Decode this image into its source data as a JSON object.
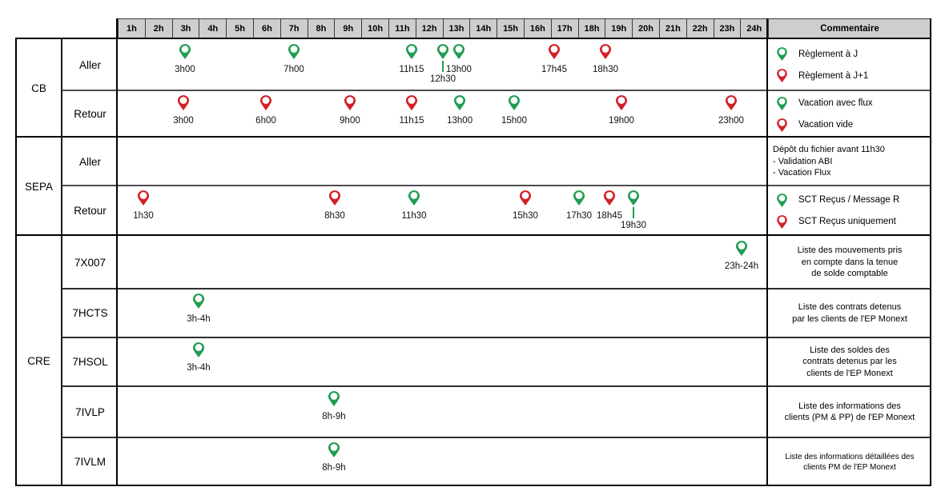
{
  "colors": {
    "green": "#1f9d50",
    "red": "#d22027",
    "header_bg": "#cecece",
    "border": "#000000",
    "inner_line": "#4d4d4d"
  },
  "header": {
    "hours": [
      "1h",
      "2h",
      "3h",
      "4h",
      "5h",
      "6h",
      "7h",
      "8h",
      "9h",
      "10h",
      "11h",
      "12h",
      "13h",
      "14h",
      "15h",
      "16h",
      "17h",
      "18h",
      "19h",
      "20h",
      "21h",
      "22h",
      "23h",
      "24h"
    ],
    "comment": "Commentaire"
  },
  "groups": [
    {
      "label": "CB",
      "rows": [
        {
          "label": "Aller",
          "pins": [
            {
              "time": "3h00",
              "color": "green",
              "x": 10.34
            },
            {
              "time": "7h00",
              "color": "green",
              "x": 27.09
            },
            {
              "time": "11h15",
              "color": "green",
              "x": 45.2
            },
            {
              "time": "12h30",
              "color": "green",
              "x": 50.0,
              "below": true
            },
            {
              "time": "13h00",
              "color": "green",
              "x": 52.46
            },
            {
              "time": "17h45",
              "color": "red",
              "x": 67.12
            },
            {
              "time": "18h30",
              "color": "red",
              "x": 75.0
            }
          ],
          "comment": {
            "type": "legend",
            "items": [
              {
                "color": "green",
                "text": "Règlement à J"
              },
              {
                "color": "red",
                "text": "Règlement à J+1"
              }
            ]
          }
        },
        {
          "label": "Retour",
          "pins": [
            {
              "time": "3h00",
              "color": "red",
              "x": 10.1
            },
            {
              "time": "6h00",
              "color": "red",
              "x": 22.78
            },
            {
              "time": "9h00",
              "color": "red",
              "x": 35.71
            },
            {
              "time": "11h15",
              "color": "red",
              "x": 45.2
            },
            {
              "time": "13h00",
              "color": "green",
              "x": 52.6
            },
            {
              "time": "15h00",
              "color": "green",
              "x": 60.96
            },
            {
              "time": "19h00",
              "color": "red",
              "x": 77.46
            },
            {
              "time": "23h00",
              "color": "red",
              "x": 94.33
            }
          ],
          "comment": {
            "type": "legend",
            "items": [
              {
                "color": "green",
                "text": "Vacation avec flux"
              },
              {
                "color": "red",
                "text": "Vacation vide"
              }
            ]
          }
        }
      ]
    },
    {
      "label": "SEPA",
      "rows": [
        {
          "label": "Aller",
          "pins": [],
          "comment": {
            "type": "text",
            "align": "left",
            "lines": [
              "Dépôt du fichier avant 11h30",
              "- Validation ABI",
              "- Vacation Flux"
            ]
          }
        },
        {
          "label": "Retour",
          "pins": [
            {
              "time": "1h30",
              "color": "red",
              "x": 3.94
            },
            {
              "time": "8h30",
              "color": "red",
              "x": 33.37
            },
            {
              "time": "11h30",
              "color": "green",
              "x": 45.57
            },
            {
              "time": "15h30",
              "color": "red",
              "x": 62.68
            },
            {
              "time": "17h30",
              "color": "green",
              "x": 70.94
            },
            {
              "time": "18h45",
              "color": "red",
              "x": 75.62
            },
            {
              "time": "19h30",
              "color": "green",
              "x": 79.31,
              "below": true
            }
          ],
          "comment": {
            "type": "legend",
            "items": [
              {
                "color": "green",
                "text": "SCT Reçus / Message R"
              },
              {
                "color": "red",
                "text": "SCT Reçus uniquement"
              }
            ]
          }
        }
      ]
    },
    {
      "label": "CRE",
      "rows": [
        {
          "label": "7X007",
          "pins": [
            {
              "time": "23h-24h",
              "color": "green",
              "x": 95.94
            }
          ],
          "comment": {
            "type": "text",
            "align": "center",
            "lines": [
              "Liste des mouvements pris",
              "en compte dans la tenue",
              "de solde comptable"
            ]
          }
        },
        {
          "label": "7HCTS",
          "pins": [
            {
              "time": "3h-4h",
              "color": "green",
              "x": 12.44
            }
          ],
          "comment": {
            "type": "text",
            "align": "center",
            "lines": [
              "Liste des contrats detenus",
              "par les clients de l'EP Monext"
            ]
          }
        },
        {
          "label": "7HSOL",
          "pins": [
            {
              "time": "3h-4h",
              "color": "green",
              "x": 12.44
            }
          ],
          "comment": {
            "type": "text",
            "align": "center",
            "lines": [
              "Liste des soldes des",
              "contrats detenus par les",
              "clients de l'EP Monext"
            ]
          }
        },
        {
          "label": "7IVLP",
          "pins": [
            {
              "time": "8h-9h",
              "color": "green",
              "x": 33.25
            }
          ],
          "comment": {
            "type": "text",
            "align": "center",
            "lines": [
              "Liste des informations des",
              "clients (PM & PP) de l'EP Monext"
            ]
          }
        },
        {
          "label": "7IVLM",
          "pins": [
            {
              "time": "8h-9h",
              "color": "green",
              "x": 33.25
            }
          ],
          "comment": {
            "type": "text",
            "align": "center",
            "small": true,
            "lines": [
              "Liste des informations détaillées des",
              "clients PM de l'EP Monext"
            ]
          }
        }
      ]
    }
  ]
}
